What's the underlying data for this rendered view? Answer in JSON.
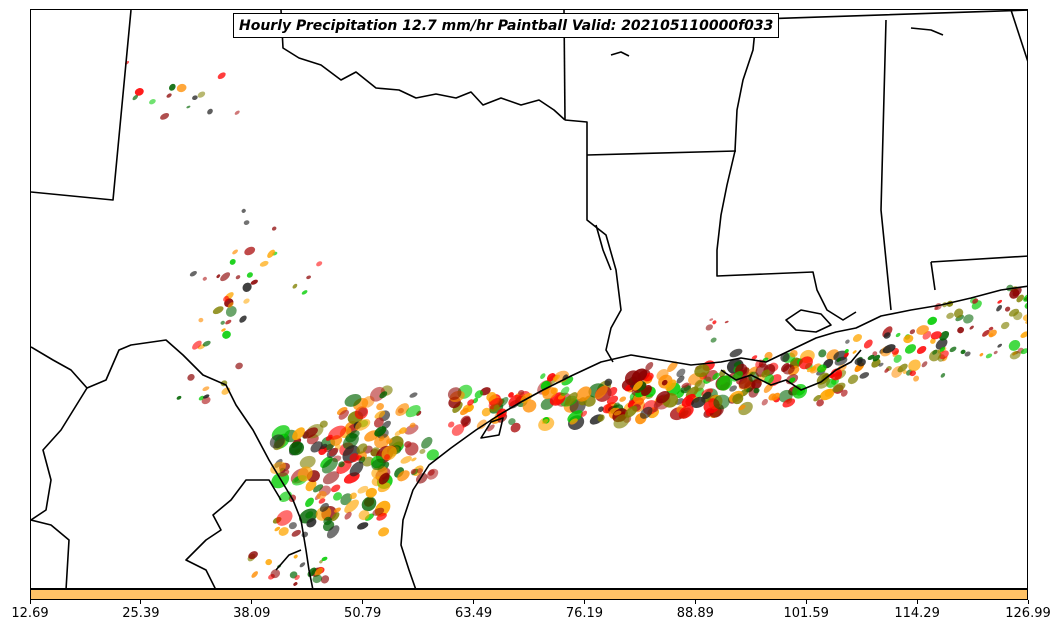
{
  "title": "Hourly Precipitation 12.7 mm/hr Paintball Valid: 202105110000f033",
  "threshold_label": "12.7 mm/hr",
  "valid_time": "202105110000f033",
  "colorbar": {
    "color": "#ffc266",
    "ticks": [
      "12.69",
      "25.39",
      "38.09",
      "50.79",
      "63.49",
      "76.19",
      "88.89",
      "101.59",
      "114.29",
      "126.99"
    ]
  },
  "member_colors": [
    "#ff0000",
    "#ff8c00",
    "#00cc00",
    "#8b0000",
    "#006400",
    "#222222",
    "#808000",
    "#ffa500",
    "#b22222"
  ],
  "map_features": [
    "state-borders",
    "coastline",
    "rivers",
    "international-border"
  ]
}
